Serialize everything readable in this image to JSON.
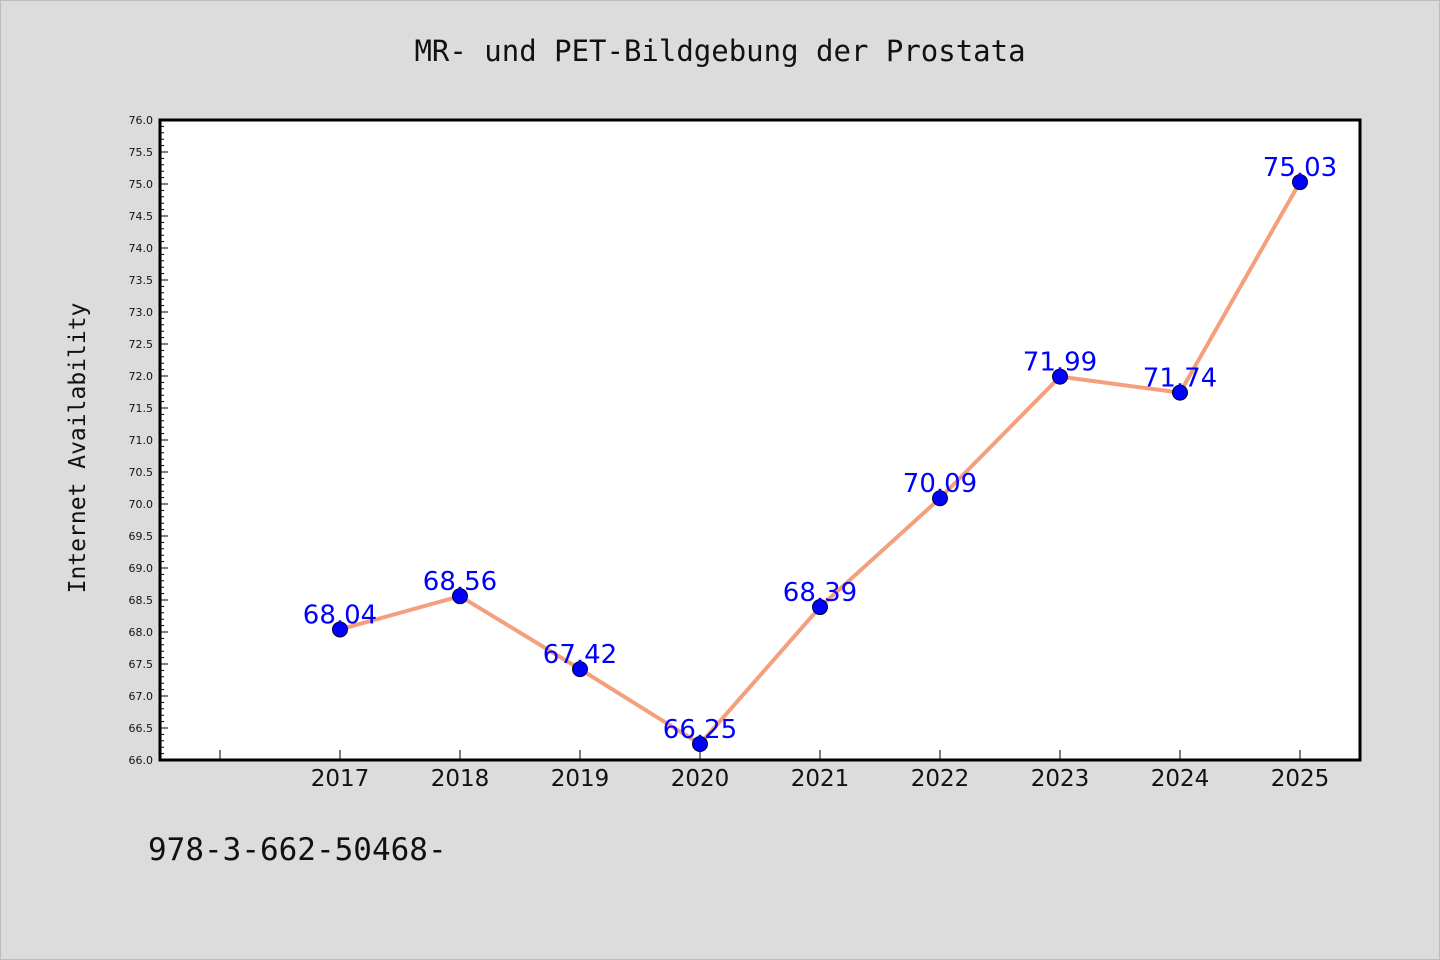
{
  "footer": {
    "text": "978-3-662-50468-"
  },
  "chart_data": {
    "type": "line",
    "title": "MR- und PET-Bildgebung der Prostata",
    "xlabel": "",
    "ylabel": "Internet Availability",
    "categories": [
      "2017",
      "2018",
      "2019",
      "2020",
      "2021",
      "2022",
      "2023",
      "2024",
      "2025"
    ],
    "series": [
      {
        "values": [
          68.04,
          68.56,
          67.42,
          66.25,
          68.39,
          70.09,
          71.99,
          71.74,
          75.03
        ]
      }
    ],
    "data_labels": [
      "68.04",
      "68.56",
      "67.42",
      "66.25",
      "68.39",
      "70.09",
      "71.99",
      "71.74",
      "75.03"
    ],
    "ylim": [
      66.0,
      76.0
    ],
    "y_ticks": [
      "66.0",
      "66.5",
      "67.0",
      "67.5",
      "68.0",
      "68.5",
      "69.0",
      "69.5",
      "70.0",
      "70.5",
      "71.0",
      "71.5",
      "72.0",
      "72.5",
      "73.0",
      "73.5",
      "74.0",
      "74.5",
      "75.0",
      "75.5",
      "76.0"
    ],
    "grid": false,
    "colors": {
      "line": "#f4a07c",
      "marker": "#0000ff",
      "label": "#0000ff",
      "background": "#dcdcdc",
      "plot_background": "#ffffff"
    }
  }
}
